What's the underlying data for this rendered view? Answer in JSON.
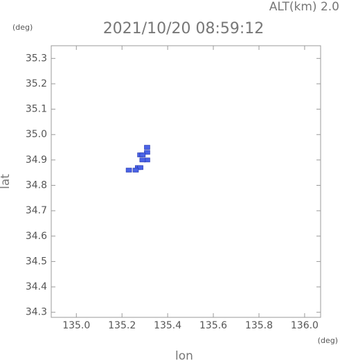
{
  "chart_data": {
    "type": "scatter",
    "title": "2021/10/20 08:59:12",
    "subtitle": "ALT(km) 2.0",
    "x_label": "lon",
    "y_label": "lat",
    "x_unit": "(deg)",
    "y_unit": "(deg)",
    "color": "#4a63e6",
    "x": [
      135.31,
      135.31,
      135.28,
      135.29,
      135.31,
      135.29,
      135.27,
      135.28,
      135.26,
      135.23
    ],
    "values": [
      34.95,
      34.93,
      34.92,
      34.92,
      34.9,
      34.9,
      34.87,
      34.87,
      34.86,
      34.86
    ],
    "xlim": [
      134.89,
      136.07
    ],
    "ylim": [
      34.28,
      35.35
    ],
    "xticks": [
      {
        "value": 135,
        "label": "135.0"
      },
      135.2,
      135.4,
      135.6,
      135.8,
      {
        "value": 136,
        "label": "136.0"
      }
    ],
    "yticks": [
      34.3,
      34.4,
      34.5,
      34.6,
      34.7,
      34.8,
      34.9,
      {
        "value": 35,
        "label": "35.0"
      },
      35.1,
      35.2,
      35.3
    ],
    "grid": false
  }
}
